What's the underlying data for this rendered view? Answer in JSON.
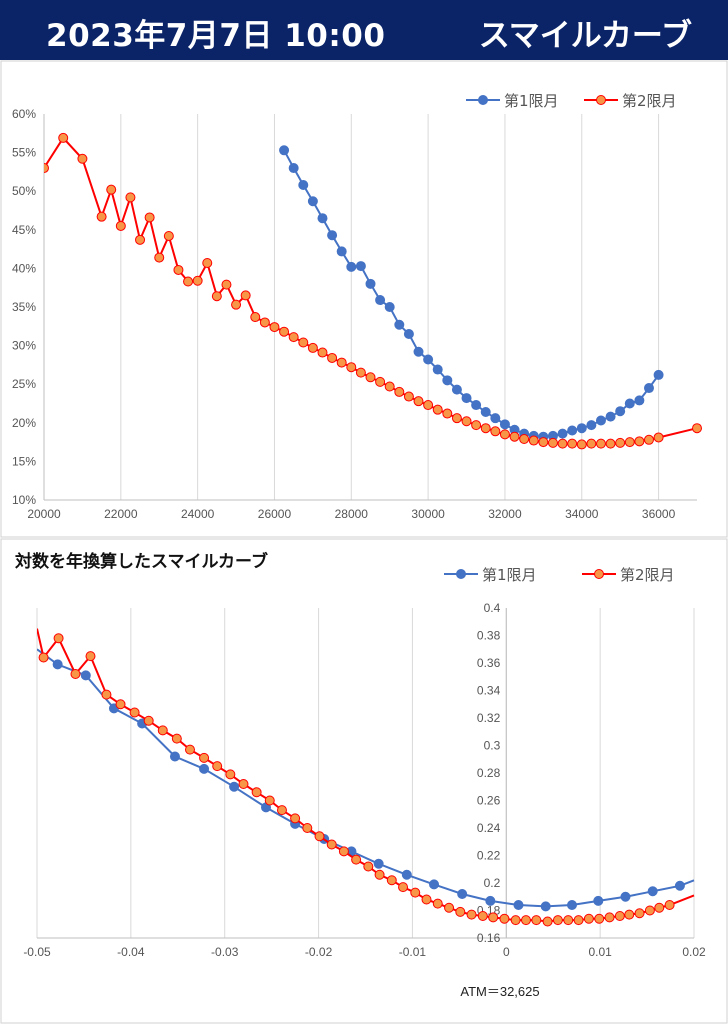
{
  "header": {
    "date": "2023年7月7日 10:00",
    "title": "スマイルカーブ"
  },
  "footer": {
    "atm_label": "ATM＝32,625"
  },
  "chart_data": [
    {
      "type": "line",
      "title": "",
      "xlabel": "",
      "ylabel": "",
      "xlim": [
        20000,
        37000
      ],
      "ylim": [
        0.1,
        0.6
      ],
      "x_ticks": [
        "20000",
        "22000",
        "24000",
        "26000",
        "28000",
        "30000",
        "32000",
        "34000",
        "36000"
      ],
      "x_tick_values": [
        20000,
        22000,
        24000,
        26000,
        28000,
        30000,
        32000,
        34000,
        36000
      ],
      "y_ticks": [
        "10%",
        "15%",
        "20%",
        "25%",
        "30%",
        "35%",
        "40%",
        "45%",
        "50%",
        "55%",
        "60%"
      ],
      "y_tick_values": [
        0.1,
        0.15,
        0.2,
        0.25,
        0.3,
        0.35,
        0.4,
        0.45,
        0.5,
        0.55,
        0.6
      ],
      "grid": "vertical",
      "legend": "top-right",
      "series": [
        {
          "name": "第1限月",
          "color": "#4472c4",
          "marker_fill": "#4472c4",
          "x": [
            26250,
            26500,
            26750,
            27000,
            27250,
            27500,
            27750,
            28000,
            28250,
            28500,
            28750,
            29000,
            29250,
            29500,
            29750,
            30000,
            30250,
            30500,
            30750,
            31000,
            31250,
            31500,
            31750,
            32000,
            32250,
            32500,
            32750,
            33000,
            33250,
            33500,
            33750,
            34000,
            34250,
            34500,
            34750,
            35000,
            35250,
            35500,
            35750,
            36000
          ],
          "y": [
            0.553,
            0.53,
            0.508,
            0.487,
            0.465,
            0.443,
            0.422,
            0.402,
            0.403,
            0.38,
            0.359,
            0.35,
            0.327,
            0.315,
            0.292,
            0.282,
            0.269,
            0.255,
            0.243,
            0.232,
            0.223,
            0.214,
            0.206,
            0.198,
            0.191,
            0.186,
            0.183,
            0.182,
            0.183,
            0.186,
            0.19,
            0.193,
            0.197,
            0.203,
            0.208,
            0.215,
            0.225,
            0.229,
            0.245,
            0.262
          ]
        },
        {
          "name": "第2限月",
          "color": "#ff0000",
          "marker_fill": "#f79646",
          "x": [
            20000,
            20500,
            21000,
            21500,
            21750,
            22000,
            22250,
            22500,
            22750,
            23000,
            23250,
            23500,
            23750,
            24000,
            24250,
            24500,
            24750,
            25000,
            25250,
            25500,
            25750,
            26000,
            26250,
            26500,
            26750,
            27000,
            27250,
            27500,
            27750,
            28000,
            28250,
            28500,
            28750,
            29000,
            29250,
            29500,
            29750,
            30000,
            30250,
            30500,
            30750,
            31000,
            31250,
            31500,
            31750,
            32000,
            32250,
            32500,
            32750,
            33000,
            33250,
            33500,
            33750,
            34000,
            34250,
            34500,
            34750,
            35000,
            35250,
            35500,
            35750,
            36000,
            37000
          ],
          "y": [
            0.53,
            0.569,
            0.542,
            0.467,
            0.502,
            0.455,
            0.492,
            0.437,
            0.466,
            0.414,
            0.442,
            0.398,
            0.383,
            0.384,
            0.407,
            0.364,
            0.379,
            0.353,
            0.365,
            0.337,
            0.33,
            0.324,
            0.318,
            0.311,
            0.304,
            0.297,
            0.291,
            0.284,
            0.278,
            0.272,
            0.265,
            0.259,
            0.253,
            0.247,
            0.24,
            0.234,
            0.228,
            0.223,
            0.217,
            0.212,
            0.206,
            0.202,
            0.197,
            0.193,
            0.189,
            0.185,
            0.182,
            0.179,
            0.177,
            0.175,
            0.174,
            0.173,
            0.173,
            0.172,
            0.173,
            0.173,
            0.173,
            0.174,
            0.175,
            0.176,
            0.178,
            0.181,
            0.193
          ]
        }
      ]
    },
    {
      "type": "line",
      "title": "対数を年換算したスマイルカーブ",
      "xlabel": "",
      "ylabel": "",
      "xlim": [
        -0.05,
        0.02
      ],
      "ylim": [
        0.16,
        0.4
      ],
      "x_ticks": [
        "-0.05",
        "-0.04",
        "-0.03",
        "-0.02",
        "-0.01",
        "0",
        "0.01",
        "0.02"
      ],
      "x_tick_values": [
        -0.05,
        -0.04,
        -0.03,
        -0.02,
        -0.01,
        0,
        0.01,
        0.02
      ],
      "y_ticks": [
        "0.16",
        "0.18",
        "0.2",
        "0.22",
        "0.24",
        "0.26",
        "0.28",
        "0.3",
        "0.32",
        "0.34",
        "0.36",
        "0.38",
        "0.4"
      ],
      "y_tick_values": [
        0.16,
        0.18,
        0.2,
        0.22,
        0.24,
        0.26,
        0.28,
        0.3,
        0.32,
        0.34,
        0.36,
        0.38,
        0.4
      ],
      "y_axis_at_x": 0,
      "grid": "vertical",
      "legend": "top-right",
      "series": [
        {
          "name": "第1限月",
          "color": "#4472c4",
          "marker_fill": "#4472c4",
          "x": [
            -0.05,
            -0.0478,
            -0.0448,
            -0.0418,
            -0.0388,
            -0.0353,
            -0.0322,
            -0.029,
            -0.0256,
            -0.0225,
            -0.0194,
            -0.0165,
            -0.0136,
            -0.0106,
            -0.0077,
            -0.0047,
            -0.0017,
            0.0013,
            0.0042,
            0.007,
            0.0098,
            0.0127,
            0.0156,
            0.0185,
            0.02
          ],
          "y": [
            0.37,
            0.359,
            0.351,
            0.327,
            0.316,
            0.292,
            0.283,
            0.27,
            0.255,
            0.243,
            0.232,
            0.223,
            0.214,
            0.206,
            0.199,
            0.192,
            0.187,
            0.184,
            0.183,
            0.184,
            0.187,
            0.19,
            0.194,
            0.198,
            0.202
          ]
        },
        {
          "name": "第2限月",
          "color": "#ff0000",
          "marker_fill": "#f79646",
          "x": [
            -0.05,
            -0.0493,
            -0.0477,
            -0.0459,
            -0.0443,
            -0.0426,
            -0.0411,
            -0.0396,
            -0.0381,
            -0.0366,
            -0.0351,
            -0.0337,
            -0.0322,
            -0.0308,
            -0.0294,
            -0.028,
            -0.0266,
            -0.0252,
            -0.0239,
            -0.0225,
            -0.0212,
            -0.0199,
            -0.0186,
            -0.0173,
            -0.016,
            -0.0147,
            -0.0135,
            -0.0122,
            -0.011,
            -0.0097,
            -0.0085,
            -0.0073,
            -0.0061,
            -0.0049,
            -0.0037,
            -0.0025,
            -0.0014,
            -0.0002,
            0.001,
            0.0021,
            0.0032,
            0.0044,
            0.0055,
            0.0066,
            0.0077,
            0.0088,
            0.0099,
            0.011,
            0.0121,
            0.0131,
            0.0142,
            0.0153,
            0.0163,
            0.0174,
            0.02
          ],
          "y": [
            0.385,
            0.364,
            0.378,
            0.352,
            0.365,
            0.337,
            0.33,
            0.324,
            0.318,
            0.311,
            0.305,
            0.297,
            0.291,
            0.285,
            0.279,
            0.272,
            0.266,
            0.26,
            0.253,
            0.247,
            0.24,
            0.234,
            0.228,
            0.223,
            0.217,
            0.212,
            0.206,
            0.202,
            0.197,
            0.193,
            0.188,
            0.185,
            0.182,
            0.179,
            0.177,
            0.176,
            0.175,
            0.174,
            0.173,
            0.173,
            0.173,
            0.172,
            0.173,
            0.173,
            0.173,
            0.174,
            0.174,
            0.175,
            0.176,
            0.177,
            0.178,
            0.18,
            0.182,
            0.184,
            0.191
          ]
        }
      ]
    }
  ]
}
